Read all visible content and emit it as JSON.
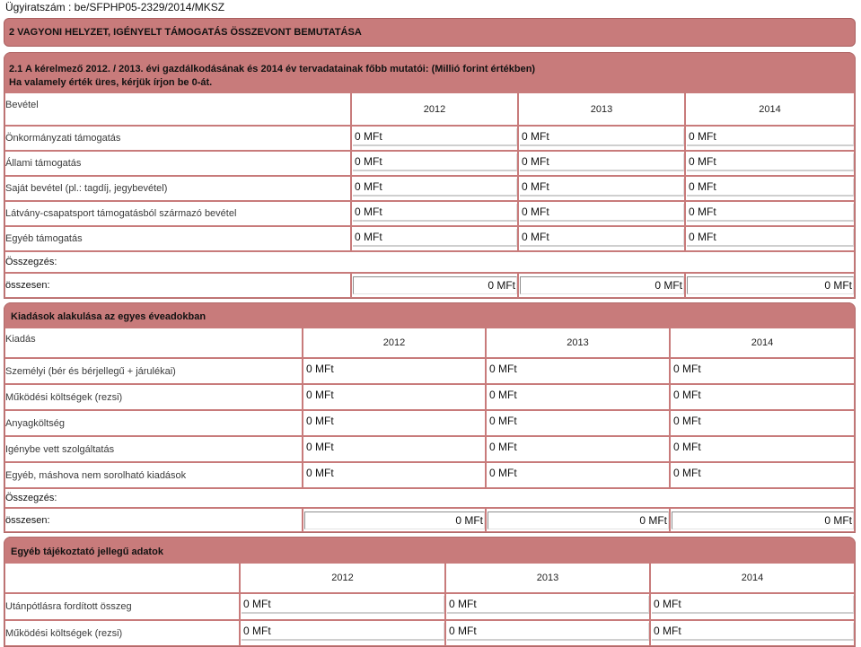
{
  "document_number": "Ügyiratszám : be/SFPHP05-2329/2014/MKSZ",
  "section_title": "2 VAGYONI HELYZET, IGÉNYELT TÁMOGATÁS ÖSSZEVONT BEMUTATÁSA",
  "colors": {
    "panel": "#c87b7b",
    "panel_edge": "#a95f5f",
    "cell": "#ffffff"
  },
  "income": {
    "heading": [
      "2.1 A kérelmező 2012. / 2013. évi gazdálkodásának és 2014 év tervadatainak főbb mutatói: (Millió forint értékben)",
      "Ha valamely érték üres, kérjük írjon be 0-át."
    ],
    "column_label": "Bevétel",
    "years": [
      "2012",
      "2013",
      "2014"
    ],
    "rows": [
      {
        "label": "Önkormányzati támogatás",
        "values": [
          "0 MFt",
          "0 MFt",
          "0 MFt"
        ]
      },
      {
        "label": "Állami támogatás",
        "values": [
          "0 MFt",
          "0 MFt",
          "0 MFt"
        ]
      },
      {
        "label": "Saját bevétel (pl.: tagdíj, jegybevétel)",
        "values": [
          "0 MFt",
          "0 MFt",
          "0 MFt"
        ]
      },
      {
        "label": "Látvány-csapatsport támogatásból származó bevétel",
        "values": [
          "0 MFt",
          "0 MFt",
          "0 MFt"
        ]
      },
      {
        "label": "Egyéb támogatás",
        "values": [
          "0 MFt",
          "0 MFt",
          "0 MFt"
        ]
      }
    ],
    "summary_label": "Összegzés:",
    "total_label": "összesen:",
    "totals": [
      "0 MFt",
      "0 MFt",
      "0 MFt"
    ]
  },
  "expenses": {
    "heading": "Kiadások alakulása az egyes éveadokban",
    "column_label": "Kiadás",
    "years": [
      "2012",
      "2013",
      "2014"
    ],
    "rows": [
      {
        "label": "Személyi (bér és bérjellegű + járulékai)",
        "values": [
          "0 MFt",
          "0 MFt",
          "0 MFt"
        ]
      },
      {
        "label": "Működési költségek (rezsi)",
        "values": [
          "0 MFt",
          "0 MFt",
          "0 MFt"
        ]
      },
      {
        "label": "Anyagköltség",
        "values": [
          "0 MFt",
          "0 MFt",
          "0 MFt"
        ]
      },
      {
        "label": "Igénybe vett szolgáltatás",
        "values": [
          "0 MFt",
          "0 MFt",
          "0 MFt"
        ]
      },
      {
        "label": "Egyéb, máshova nem sorolható kiadások",
        "values": [
          "0 MFt",
          "0 MFt",
          "0 MFt"
        ]
      }
    ],
    "summary_label": "Összegzés:",
    "total_label": "összesen:",
    "totals": [
      "0 MFt",
      "0 MFt",
      "0 MFt"
    ]
  },
  "other_info": {
    "heading": "Egyéb tájékoztató jellegű adatok",
    "years": [
      "2012",
      "2013",
      "2014"
    ],
    "rows": [
      {
        "label": "Utánpótlásra fordított összeg",
        "values": [
          "0 MFt",
          "0 MFt",
          "0 MFt"
        ]
      },
      {
        "label": "Működési költségek (rezsi)",
        "values": [
          "0 MFt",
          "0 MFt",
          "0 MFt"
        ]
      }
    ]
  }
}
